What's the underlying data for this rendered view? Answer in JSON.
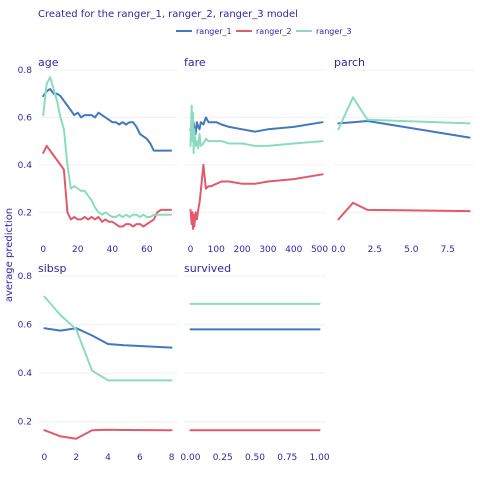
{
  "chart_data": {
    "type": "line",
    "title": "Created for the ranger_1, ranger_2, ranger_3 model",
    "ylabel": "average prediction",
    "ylim": [
      0.1,
      0.8
    ],
    "yticks": [
      0.2,
      0.4,
      0.6,
      0.8
    ],
    "legend": {
      "placement": "top",
      "entries": [
        {
          "name": "ranger_1",
          "color": "#4378bf"
        },
        {
          "name": "ranger_2",
          "color": "#e05a6d"
        },
        {
          "name": "ranger_3",
          "color": "#8bdcbe"
        }
      ]
    },
    "panels": [
      {
        "id": "age",
        "title": "age",
        "xlim": [
          -3,
          78
        ],
        "xticks": [
          0,
          20,
          40,
          60
        ],
        "xtick_labels": [
          "0",
          "20",
          "40",
          "60"
        ],
        "series": [
          {
            "name": "ranger_1",
            "x": [
              0,
              2,
              4,
              6,
              8,
              10,
              12,
              14,
              16,
              18,
              20,
              22,
              24,
              26,
              28,
              30,
              32,
              34,
              36,
              38,
              40,
              42,
              44,
              46,
              48,
              50,
              52,
              54,
              56,
              58,
              60,
              62,
              64,
              66,
              68,
              70,
              72,
              74
            ],
            "y": [
              0.69,
              0.71,
              0.72,
              0.7,
              0.7,
              0.69,
              0.67,
              0.65,
              0.63,
              0.61,
              0.62,
              0.6,
              0.61,
              0.61,
              0.61,
              0.6,
              0.62,
              0.61,
              0.6,
              0.59,
              0.58,
              0.58,
              0.57,
              0.58,
              0.57,
              0.58,
              0.58,
              0.56,
              0.53,
              0.52,
              0.51,
              0.49,
              0.46,
              0.46,
              0.46,
              0.46,
              0.46,
              0.46
            ]
          },
          {
            "name": "ranger_2",
            "x": [
              0,
              2,
              4,
              6,
              8,
              10,
              12,
              14,
              16,
              18,
              20,
              22,
              24,
              26,
              28,
              30,
              32,
              34,
              36,
              38,
              40,
              42,
              44,
              46,
              48,
              50,
              52,
              54,
              56,
              58,
              60,
              62,
              64,
              66,
              68,
              70,
              72,
              74
            ],
            "y": [
              0.45,
              0.48,
              0.46,
              0.44,
              0.42,
              0.4,
              0.38,
              0.2,
              0.17,
              0.18,
              0.17,
              0.17,
              0.18,
              0.17,
              0.18,
              0.17,
              0.18,
              0.16,
              0.17,
              0.16,
              0.16,
              0.15,
              0.14,
              0.14,
              0.15,
              0.15,
              0.14,
              0.15,
              0.15,
              0.14,
              0.15,
              0.16,
              0.17,
              0.2,
              0.21,
              0.21,
              0.21,
              0.21
            ]
          },
          {
            "name": "ranger_3",
            "x": [
              0,
              2,
              4,
              6,
              8,
              10,
              12,
              14,
              16,
              18,
              20,
              22,
              24,
              26,
              28,
              30,
              32,
              34,
              36,
              38,
              40,
              42,
              44,
              46,
              48,
              50,
              52,
              54,
              56,
              58,
              60,
              62,
              64,
              66,
              68,
              70,
              72,
              74
            ],
            "y": [
              0.61,
              0.74,
              0.77,
              0.72,
              0.67,
              0.6,
              0.55,
              0.4,
              0.3,
              0.31,
              0.3,
              0.29,
              0.29,
              0.27,
              0.25,
              0.22,
              0.2,
              0.19,
              0.2,
              0.19,
              0.18,
              0.18,
              0.19,
              0.18,
              0.19,
              0.18,
              0.19,
              0.19,
              0.18,
              0.19,
              0.18,
              0.18,
              0.19,
              0.19,
              0.19,
              0.19,
              0.19,
              0.19
            ]
          }
        ]
      },
      {
        "id": "fare",
        "title": "fare",
        "xlim": [
          -25,
          525
        ],
        "xticks": [
          0,
          100,
          200,
          300,
          400,
          500
        ],
        "xtick_labels": [
          "0",
          "100",
          "200",
          "300",
          "400",
          "500"
        ],
        "series": [
          {
            "name": "ranger_1",
            "x": [
              0,
              5,
              8,
              10,
              12,
              15,
              20,
              25,
              30,
              35,
              40,
              50,
              60,
              70,
              80,
              100,
              120,
              150,
              200,
              250,
              300,
              400,
              512
            ],
            "y": [
              0.55,
              0.52,
              0.57,
              0.54,
              0.58,
              0.56,
              0.53,
              0.58,
              0.56,
              0.55,
              0.58,
              0.57,
              0.6,
              0.58,
              0.58,
              0.58,
              0.57,
              0.56,
              0.55,
              0.54,
              0.55,
              0.56,
              0.58
            ]
          },
          {
            "name": "ranger_2",
            "x": [
              0,
              5,
              8,
              10,
              12,
              15,
              20,
              25,
              30,
              35,
              40,
              50,
              60,
              70,
              80,
              100,
              120,
              150,
              200,
              250,
              300,
              400,
              512
            ],
            "y": [
              0.21,
              0.15,
              0.2,
              0.13,
              0.19,
              0.14,
              0.2,
              0.17,
              0.21,
              0.24,
              0.29,
              0.4,
              0.3,
              0.31,
              0.31,
              0.32,
              0.33,
              0.33,
              0.32,
              0.32,
              0.33,
              0.34,
              0.36
            ]
          },
          {
            "name": "ranger_3",
            "x": [
              0,
              5,
              8,
              10,
              12,
              15,
              20,
              25,
              30,
              35,
              40,
              50,
              60,
              70,
              80,
              100,
              120,
              150,
              200,
              250,
              300,
              400,
              512
            ],
            "y": [
              0.48,
              0.65,
              0.5,
              0.62,
              0.45,
              0.55,
              0.48,
              0.5,
              0.47,
              0.53,
              0.48,
              0.49,
              0.51,
              0.5,
              0.5,
              0.5,
              0.5,
              0.49,
              0.49,
              0.48,
              0.48,
              0.49,
              0.5
            ]
          }
        ]
      },
      {
        "id": "parch",
        "title": "parch",
        "xlim": [
          -0.3,
          9.3
        ],
        "xticks": [
          0,
          2.5,
          5,
          7.5
        ],
        "xtick_labels": [
          "0.0",
          "2.5",
          "5.0",
          "7.5"
        ],
        "series": [
          {
            "name": "ranger_1",
            "x": [
              0,
              1,
              2,
              9
            ],
            "y": [
              0.575,
              0.58,
              0.585,
              0.515
            ]
          },
          {
            "name": "ranger_2",
            "x": [
              0,
              1,
              2,
              9
            ],
            "y": [
              0.17,
              0.24,
              0.21,
              0.205
            ]
          },
          {
            "name": "ranger_3",
            "x": [
              0,
              1,
              2,
              9
            ],
            "y": [
              0.55,
              0.685,
              0.59,
              0.575
            ]
          }
        ]
      },
      {
        "id": "sibsp",
        "title": "sibsp",
        "xlim": [
          -0.4,
          8.4
        ],
        "xticks": [
          0,
          2,
          4,
          6,
          8
        ],
        "xtick_labels": [
          "0",
          "2",
          "4",
          "6",
          "8"
        ],
        "series": [
          {
            "name": "ranger_1",
            "x": [
              0,
              1,
              2,
              3,
              4,
              5,
              8
            ],
            "y": [
              0.585,
              0.575,
              0.585,
              0.555,
              0.52,
              0.515,
              0.505
            ]
          },
          {
            "name": "ranger_2",
            "x": [
              0,
              1,
              2,
              3,
              4,
              5,
              8
            ],
            "y": [
              0.165,
              0.14,
              0.13,
              0.165,
              0.167,
              0.166,
              0.165
            ]
          },
          {
            "name": "ranger_3",
            "x": [
              0,
              1,
              2,
              3,
              4,
              5,
              8
            ],
            "y": [
              0.715,
              0.64,
              0.58,
              0.41,
              0.37,
              0.37,
              0.37
            ]
          }
        ]
      },
      {
        "id": "survived",
        "title": "survived",
        "xlim": [
          -0.05,
          1.05
        ],
        "xticks": [
          0,
          0.25,
          0.5,
          0.75,
          1
        ],
        "xtick_labels": [
          "0.00",
          "0.25",
          "0.50",
          "0.75",
          "1.00"
        ],
        "series": [
          {
            "name": "ranger_1",
            "x": [
              0,
              1
            ],
            "y": [
              0.58,
              0.58
            ]
          },
          {
            "name": "ranger_2",
            "x": [
              0,
              1
            ],
            "y": [
              0.165,
              0.165
            ]
          },
          {
            "name": "ranger_3",
            "x": [
              0,
              1
            ],
            "y": [
              0.685,
              0.685
            ]
          }
        ]
      }
    ]
  }
}
